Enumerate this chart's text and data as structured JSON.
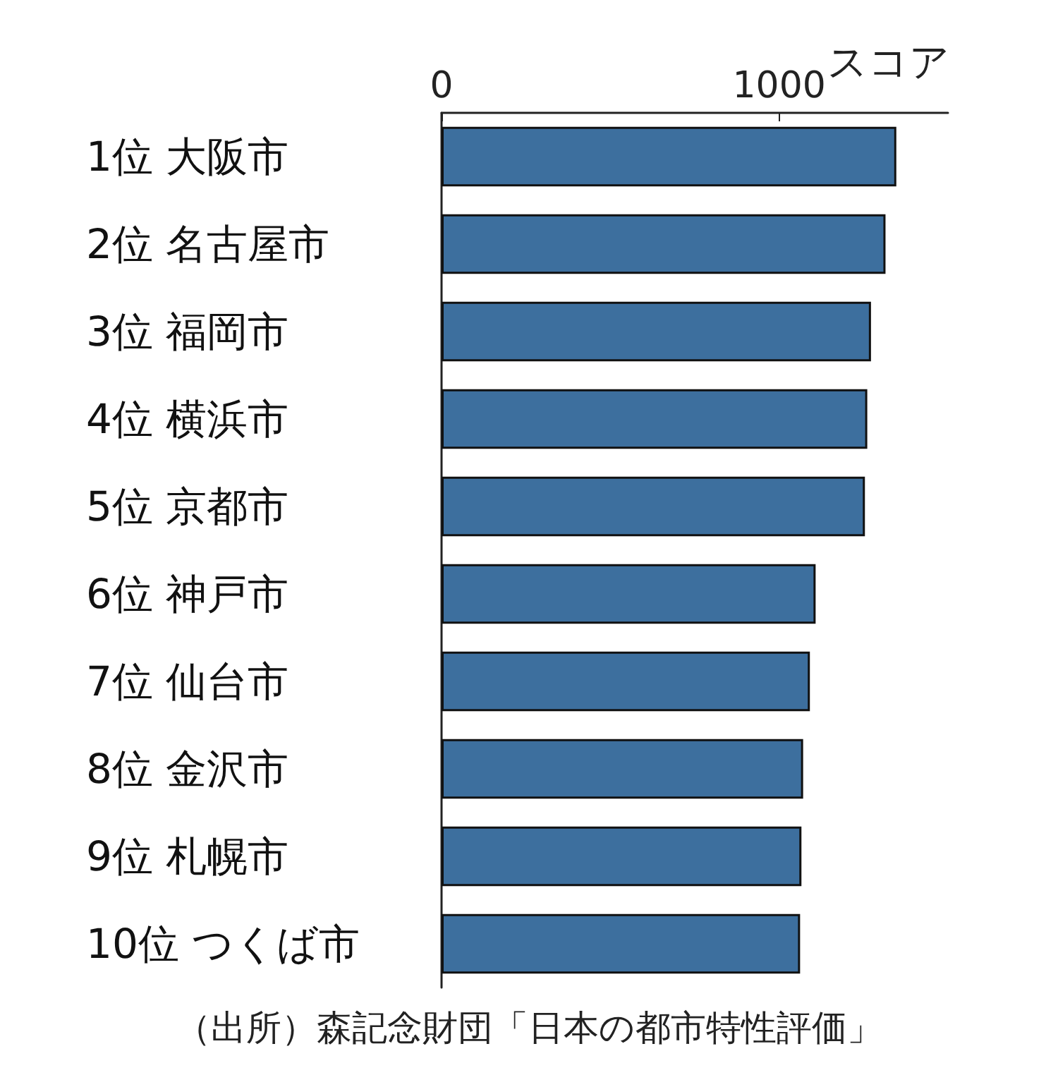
{
  "chart_data": {
    "type": "bar",
    "orientation": "horizontal",
    "categories": [
      "1位 大阪市",
      "2位 名古屋市",
      "3位 福岡市",
      "4位 横浜市",
      "5位 京都市",
      "6位 神戸市",
      "7位 仙台市",
      "8位 金沢市",
      "9位 札幌市",
      "10位 つくば市"
    ],
    "values": [
      1347,
      1315,
      1272,
      1261,
      1254,
      1108,
      1091,
      1071,
      1066,
      1062
    ],
    "color": "#3d6f9e",
    "xlabel": "スコア",
    "xlim": [
      0,
      1500
    ],
    "xticks": [
      0,
      1000
    ],
    "grid": false,
    "annotations": [
      "（出所）森記念財団「日本の都市特性評価」"
    ]
  }
}
